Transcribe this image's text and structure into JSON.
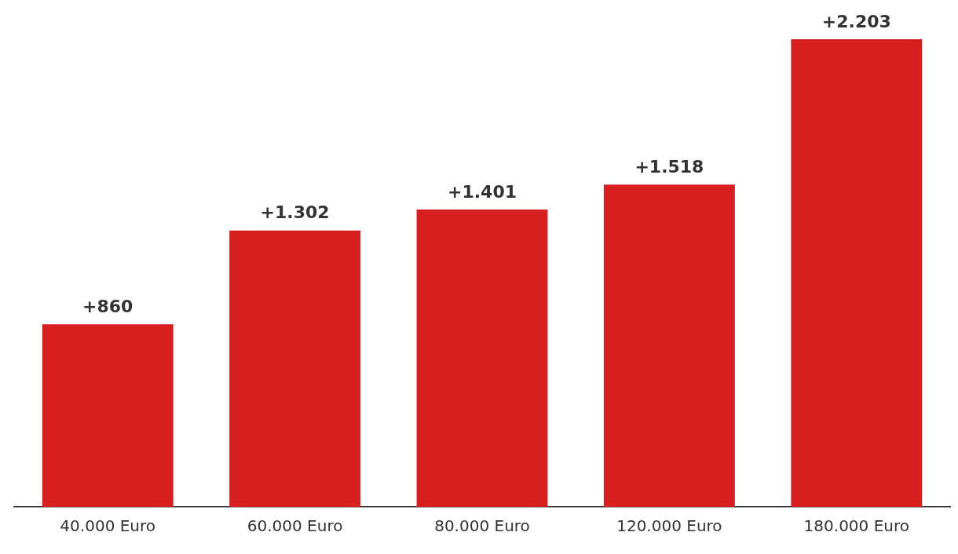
{
  "chart_data": {
    "type": "bar",
    "categories": [
      "40.000 Euro",
      "60.000 Euro",
      "80.000 Euro",
      "120.000 Euro",
      "180.000 Euro"
    ],
    "values": [
      860,
      1302,
      1401,
      1518,
      2203
    ],
    "value_labels": [
      "+860",
      "+1.302",
      "+1.401",
      "+1.518",
      "+2.203"
    ],
    "color": "#d71f20",
    "ylim": [
      0,
      2203
    ],
    "tick_labels": "x",
    "grid": false,
    "legend": false
  }
}
